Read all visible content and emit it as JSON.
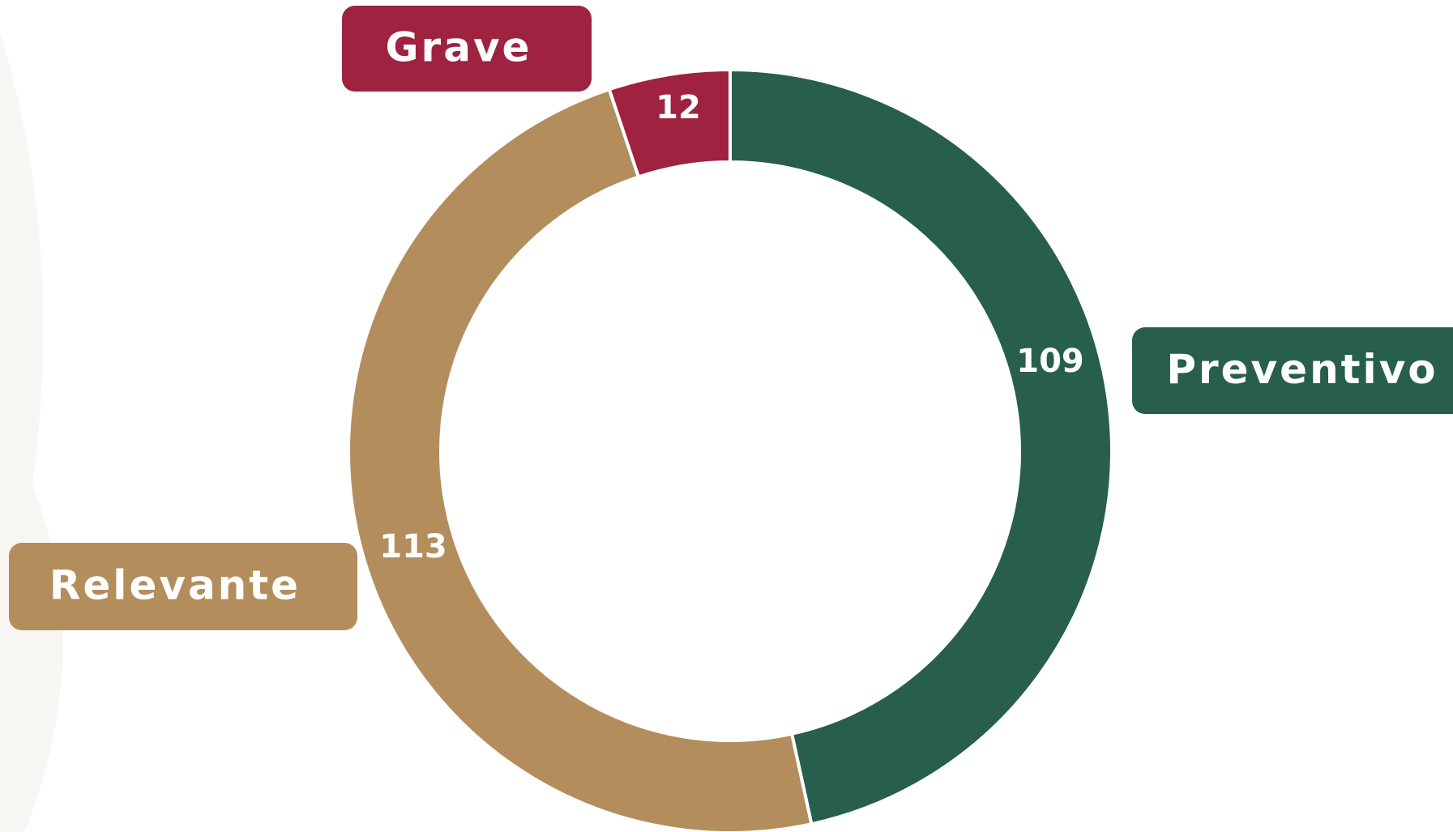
{
  "chart_data": {
    "type": "pie",
    "donut": true,
    "categories": [
      "Preventivo",
      "Relevante",
      "Grave"
    ],
    "values": [
      109,
      113,
      12
    ],
    "colors": [
      "#285e4e",
      "#b38e5c",
      "#9f2240"
    ]
  }
}
